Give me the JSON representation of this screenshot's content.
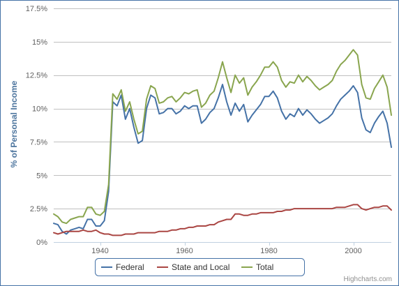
{
  "chart_data": {
    "type": "line",
    "title": "",
    "xlabel": "",
    "ylabel": "% of Personal Income",
    "xlim": [
      1929,
      2009
    ],
    "ylim": [
      0,
      17.5
    ],
    "x_ticks": [
      "1940",
      "1960",
      "1980",
      "2000"
    ],
    "x_tick_values": [
      1940,
      1960,
      1980,
      2000
    ],
    "y_ticks": [
      "0%",
      "2.5%",
      "5%",
      "7.5%",
      "10%",
      "12.5%",
      "15%",
      "17.5%"
    ],
    "y_tick_values": [
      0,
      2.5,
      5,
      7.5,
      10,
      12.5,
      15,
      17.5
    ],
    "grid": "horizontal",
    "legend_position": "bottom-center",
    "x": [
      1929,
      1930,
      1931,
      1932,
      1933,
      1934,
      1935,
      1936,
      1937,
      1938,
      1939,
      1940,
      1941,
      1942,
      1943,
      1944,
      1945,
      1946,
      1947,
      1948,
      1949,
      1950,
      1951,
      1952,
      1953,
      1954,
      1955,
      1956,
      1957,
      1958,
      1959,
      1960,
      1961,
      1962,
      1963,
      1964,
      1965,
      1966,
      1967,
      1968,
      1969,
      1970,
      1971,
      1972,
      1973,
      1974,
      1975,
      1976,
      1977,
      1978,
      1979,
      1980,
      1981,
      1982,
      1983,
      1984,
      1985,
      1986,
      1987,
      1988,
      1989,
      1990,
      1991,
      1992,
      1993,
      1994,
      1995,
      1996,
      1997,
      1998,
      1999,
      2000,
      2001,
      2002,
      2003,
      2004,
      2005,
      2006,
      2007,
      2008,
      2009
    ],
    "series": [
      {
        "name": "Federal",
        "color": "#4572a7",
        "values": [
          1.4,
          1.3,
          0.8,
          0.6,
          0.9,
          1.0,
          1.1,
          1.0,
          1.7,
          1.7,
          1.2,
          1.2,
          1.6,
          3.8,
          10.5,
          10.2,
          11.0,
          9.2,
          10.0,
          8.6,
          7.4,
          7.6,
          10.0,
          11.0,
          10.8,
          9.6,
          9.7,
          10.0,
          10.0,
          9.6,
          9.8,
          10.2,
          10.0,
          10.2,
          10.2,
          8.9,
          9.2,
          9.7,
          10.0,
          10.8,
          11.8,
          10.5,
          9.5,
          10.4,
          9.8,
          10.3,
          9.0,
          9.5,
          9.9,
          10.3,
          10.9,
          10.9,
          11.3,
          10.8,
          9.8,
          9.2,
          9.6,
          9.4,
          10.0,
          9.5,
          9.9,
          9.6,
          9.2,
          8.9,
          9.1,
          9.3,
          9.6,
          10.2,
          10.7,
          11.0,
          11.3,
          11.7,
          11.2,
          9.3,
          8.4,
          8.2,
          8.9,
          9.4,
          9.8,
          8.9,
          7.1
        ]
      },
      {
        "name": "State and Local",
        "color": "#aa4643",
        "values": [
          0.7,
          0.6,
          0.7,
          0.8,
          0.8,
          0.8,
          0.8,
          0.9,
          0.8,
          0.8,
          0.9,
          0.7,
          0.6,
          0.6,
          0.5,
          0.5,
          0.5,
          0.6,
          0.6,
          0.6,
          0.7,
          0.7,
          0.7,
          0.7,
          0.7,
          0.8,
          0.8,
          0.8,
          0.9,
          0.9,
          1.0,
          1.0,
          1.1,
          1.1,
          1.2,
          1.2,
          1.2,
          1.3,
          1.3,
          1.5,
          1.6,
          1.7,
          1.7,
          2.1,
          2.1,
          2.0,
          2.0,
          2.1,
          2.1,
          2.2,
          2.2,
          2.2,
          2.2,
          2.3,
          2.3,
          2.4,
          2.4,
          2.5,
          2.5,
          2.5,
          2.5,
          2.5,
          2.5,
          2.5,
          2.5,
          2.5,
          2.5,
          2.6,
          2.6,
          2.6,
          2.7,
          2.8,
          2.8,
          2.5,
          2.4,
          2.5,
          2.6,
          2.6,
          2.7,
          2.7,
          2.4
        ]
      },
      {
        "name": "Total",
        "color": "#89a54e",
        "values": [
          2.1,
          1.9,
          1.5,
          1.4,
          1.7,
          1.8,
          1.9,
          1.9,
          2.6,
          2.6,
          2.1,
          2.0,
          2.3,
          4.3,
          11.1,
          10.7,
          11.4,
          9.8,
          10.5,
          9.2,
          8.1,
          8.3,
          10.7,
          11.7,
          11.5,
          10.4,
          10.5,
          10.8,
          10.9,
          10.5,
          10.8,
          11.2,
          11.1,
          11.3,
          11.4,
          10.1,
          10.4,
          11.0,
          11.3,
          12.3,
          13.5,
          12.3,
          11.2,
          12.5,
          11.9,
          12.3,
          11.0,
          11.6,
          12.0,
          12.5,
          13.1,
          13.1,
          13.5,
          13.1,
          12.1,
          11.6,
          12.0,
          11.9,
          12.5,
          12.0,
          12.4,
          12.1,
          11.7,
          11.4,
          11.6,
          11.8,
          12.1,
          12.8,
          13.3,
          13.6,
          14.0,
          14.4,
          14.0,
          11.8,
          10.8,
          10.7,
          11.5,
          12.0,
          12.5,
          11.6,
          9.5
        ]
      }
    ]
  },
  "credits": "Highcharts.com"
}
